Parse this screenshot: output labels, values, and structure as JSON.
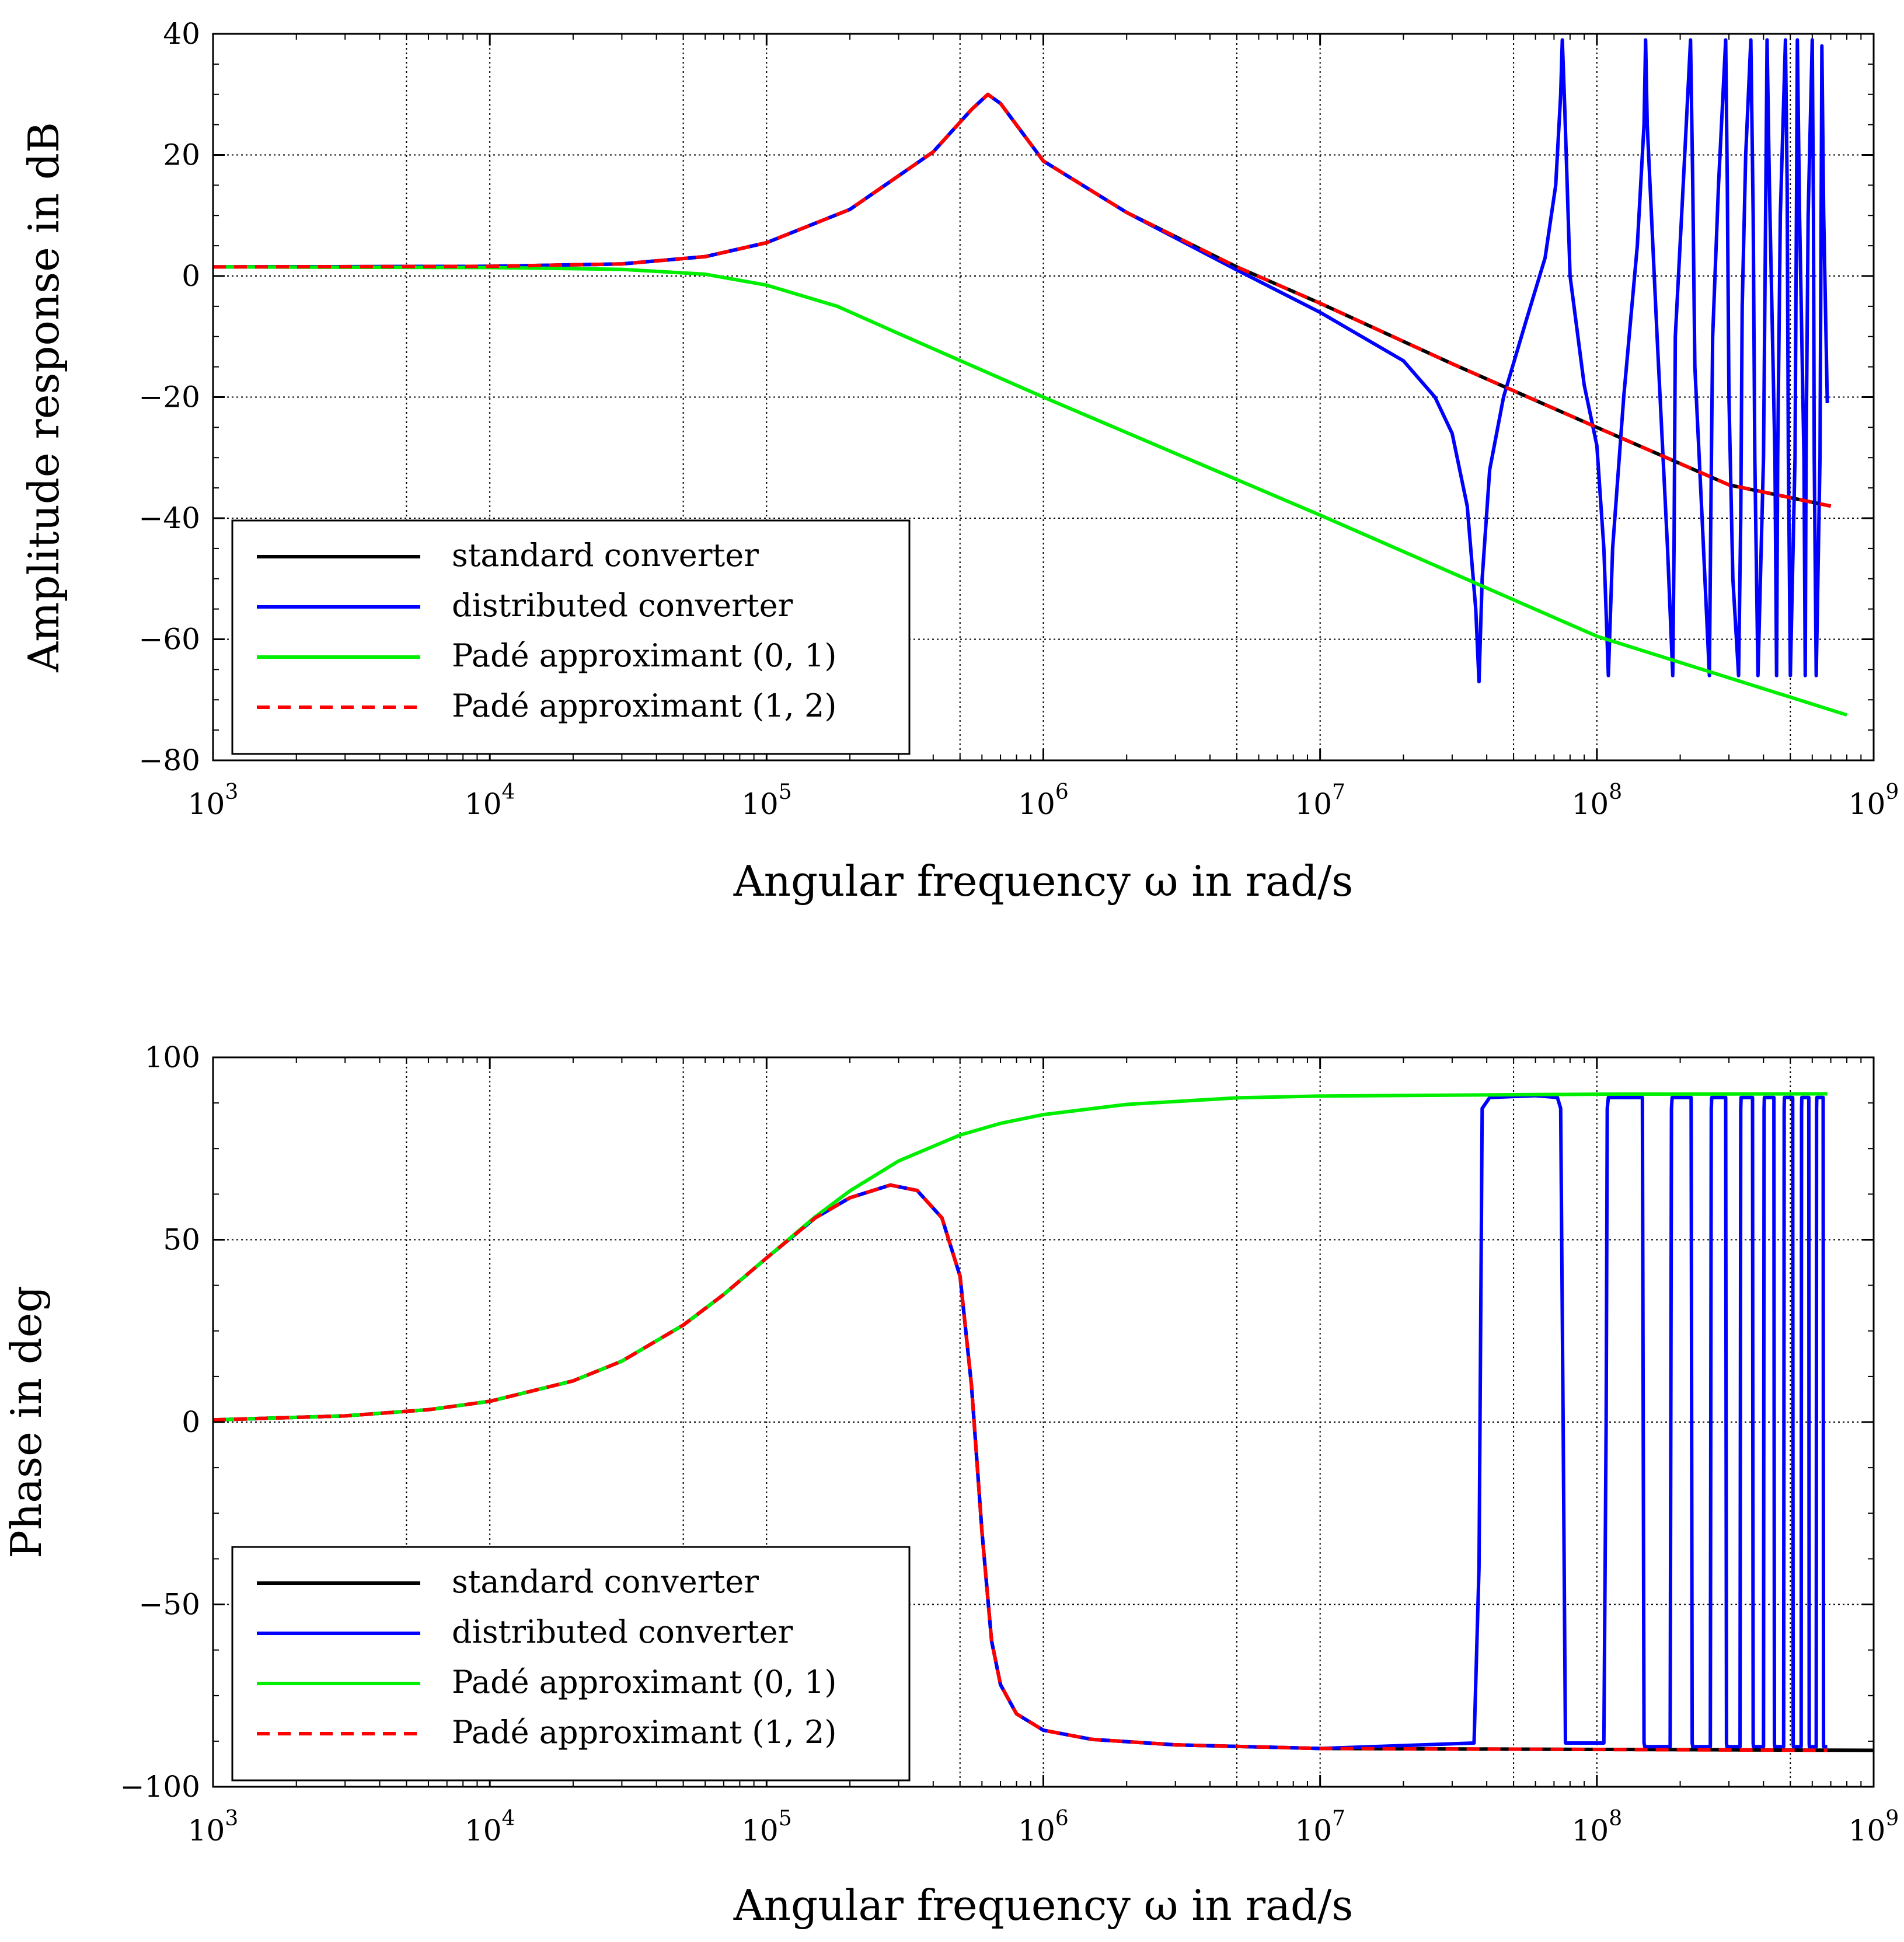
{
  "chart_data": [
    {
      "type": "line",
      "id": "amplitude",
      "xlabel": "Angular frequency ω in rad/s",
      "ylabel": "Amplitude response in dB",
      "xscale": "log",
      "xlim": [
        1000,
        1000000000
      ],
      "ylim": [
        -80,
        40
      ],
      "xticks": [
        {
          "value": 1000,
          "base": "10",
          "exp": "3"
        },
        {
          "value": 10000,
          "base": "10",
          "exp": "4"
        },
        {
          "value": 100000,
          "base": "10",
          "exp": "5"
        },
        {
          "value": 1000000,
          "base": "10",
          "exp": "6"
        },
        {
          "value": 10000000,
          "base": "10",
          "exp": "7"
        },
        {
          "value": 100000000,
          "base": "10",
          "exp": "8"
        },
        {
          "value": 1000000000,
          "base": "10",
          "exp": "9"
        }
      ],
      "yticks": [
        {
          "value": 40,
          "label": "40"
        },
        {
          "value": 20,
          "label": "20"
        },
        {
          "value": 0,
          "label": "0"
        },
        {
          "value": -20,
          "label": "−20"
        },
        {
          "value": -40,
          "label": "−40"
        },
        {
          "value": -60,
          "label": "−60"
        },
        {
          "value": -80,
          "label": "−80"
        }
      ],
      "grid": true,
      "legend_position": "bottom-left",
      "series": [
        {
          "name": "standard converter",
          "color": "#000000",
          "dashed": false,
          "x": [
            1000,
            10000,
            30000,
            60000,
            100000,
            200000,
            400000,
            550000,
            630000,
            700000,
            1000000,
            2000000,
            5000000,
            10000000,
            30000000,
            100000000,
            300000000,
            700000000
          ],
          "y": [
            1.5,
            1.6,
            2.0,
            3.2,
            5.5,
            11.0,
            20.5,
            27.5,
            30.0,
            28.5,
            19.0,
            10.5,
            1.5,
            -4.5,
            -14.5,
            -25.0,
            -34.5,
            -38.0
          ]
        },
        {
          "name": "distributed converter",
          "color": "#0000ff",
          "dashed": false,
          "x": [
            1000,
            10000,
            30000,
            60000,
            100000,
            200000,
            400000,
            550000,
            630000,
            700000,
            1000000,
            2000000,
            5000000,
            10000000,
            20000000,
            26000000,
            30000000,
            34000000,
            36500000,
            37500000,
            38500000,
            41000000,
            46000000,
            55000000,
            65000000,
            71000000,
            74000000,
            75000000,
            76500000,
            80000000,
            90000000,
            100000000,
            106000000,
            110000000,
            114000000,
            125000000,
            140000000,
            148000000,
            150000000,
            152000000,
            165000000,
            180000000,
            188000000,
            190000000,
            192000000,
            205000000,
            218000000,
            222000000,
            226000000,
            240000000,
            255000000,
            258000000,
            262000000,
            275000000,
            292000000,
            296000000,
            300000000,
            310000000,
            325000000,
            331000000,
            335000000,
            345000000,
            360000000,
            367000000,
            372000000,
            382000000,
            400000000,
            407000000,
            412000000,
            420000000,
            440000000,
            446000000,
            450000000,
            460000000,
            480000000,
            487000000,
            492000000,
            500000000,
            520000000,
            526000000,
            530000000,
            540000000,
            560000000,
            566000000,
            570000000,
            580000000,
            600000000,
            606000000,
            610000000,
            620000000,
            640000000,
            646000000,
            650000000,
            660000000,
            680000000
          ],
          "y": [
            1.5,
            1.6,
            2.0,
            3.2,
            5.5,
            11.0,
            20.5,
            27.5,
            30.0,
            28.5,
            19.0,
            10.5,
            1.0,
            -6.0,
            -14.0,
            -20.0,
            -26.0,
            -38.0,
            -55.0,
            -67.0,
            -50.0,
            -32.0,
            -20.0,
            -8.0,
            3.0,
            15.0,
            30.0,
            39.0,
            28.0,
            0.0,
            -18.0,
            -28.0,
            -45.0,
            -66.0,
            -45.0,
            -20.0,
            5.0,
            25.0,
            39.0,
            25.0,
            -10.0,
            -45.0,
            -66.0,
            -45.0,
            -10.0,
            15.0,
            39.0,
            15.0,
            -15.0,
            -40.0,
            -66.0,
            -40.0,
            -10.0,
            15.0,
            39.0,
            15.0,
            -20.0,
            -50.0,
            -66.0,
            -40.0,
            -5.0,
            20.0,
            39.0,
            10.0,
            -30.0,
            -66.0,
            -30.0,
            10.0,
            39.0,
            15.0,
            -30.0,
            -66.0,
            -30.0,
            10.0,
            39.0,
            15.0,
            -30.0,
            -66.0,
            -30.0,
            10.0,
            39.0,
            10.0,
            -30.0,
            -66.0,
            -30.0,
            10.0,
            39.0,
            10.0,
            -30.0,
            -66.0,
            -30.0,
            10.0,
            38.0,
            10.0,
            -21.0
          ]
        },
        {
          "name": "Padé approximant (0, 1)",
          "color": "#00ee00",
          "dashed": false,
          "x": [
            1000,
            10000,
            30000,
            60000,
            100000,
            180000,
            300000,
            1000000,
            10000000,
            100000000,
            800000000
          ],
          "y": [
            1.5,
            1.4,
            1.1,
            0.3,
            -1.5,
            -5.0,
            -9.5,
            -20.0,
            -39.5,
            -59.5,
            -72.5
          ]
        },
        {
          "name": "Padé approximant (1, 2)",
          "color": "#ff0000",
          "dashed": true,
          "x": [
            1000,
            10000,
            30000,
            60000,
            100000,
            200000,
            400000,
            550000,
            630000,
            700000,
            1000000,
            2000000,
            5000000,
            10000000,
            30000000,
            100000000,
            300000000,
            700000000
          ],
          "y": [
            1.5,
            1.6,
            2.0,
            3.2,
            5.5,
            11.0,
            20.5,
            27.5,
            30.0,
            28.5,
            19.0,
            10.5,
            1.5,
            -4.5,
            -14.5,
            -25.0,
            -34.5,
            -38.0
          ]
        }
      ]
    },
    {
      "type": "line",
      "id": "phase",
      "xlabel": "Angular frequency ω in rad/s",
      "ylabel": "Phase in deg",
      "xscale": "log",
      "xlim": [
        1000,
        1000000000
      ],
      "ylim": [
        -100,
        100
      ],
      "xticks": [
        {
          "value": 1000,
          "base": "10",
          "exp": "3"
        },
        {
          "value": 10000,
          "base": "10",
          "exp": "4"
        },
        {
          "value": 100000,
          "base": "10",
          "exp": "5"
        },
        {
          "value": 1000000,
          "base": "10",
          "exp": "6"
        },
        {
          "value": 10000000,
          "base": "10",
          "exp": "7"
        },
        {
          "value": 100000000,
          "base": "10",
          "exp": "8"
        },
        {
          "value": 1000000000,
          "base": "10",
          "exp": "9"
        }
      ],
      "yticks": [
        {
          "value": 100,
          "label": "100"
        },
        {
          "value": 50,
          "label": "50"
        },
        {
          "value": 0,
          "label": "0"
        },
        {
          "value": -50,
          "label": "−50"
        },
        {
          "value": -100,
          "label": "−100"
        }
      ],
      "grid": true,
      "legend_position": "bottom-left",
      "series": [
        {
          "name": "standard converter",
          "color": "#000000",
          "dashed": false,
          "x": [
            1000,
            3000,
            6000,
            10000,
            20000,
            30000,
            50000,
            70000,
            100000,
            150000,
            200000,
            280000,
            350000,
            430000,
            500000,
            550000,
            600000,
            650000,
            700000,
            800000,
            1000000,
            1500000,
            3000000,
            10000000,
            1000000000
          ],
          "y": [
            0.6,
            1.7,
            3.4,
            5.7,
            11.3,
            16.7,
            26.6,
            35.0,
            45.0,
            56.0,
            61.5,
            65.0,
            63.5,
            56.0,
            40.0,
            10.0,
            -30.0,
            -60.0,
            -72.0,
            -80.0,
            -84.5,
            -87.0,
            -88.5,
            -89.5,
            -90.0
          ]
        },
        {
          "name": "distributed converter",
          "color": "#0000ff",
          "dashed": false,
          "x": [
            1000,
            3000,
            6000,
            10000,
            20000,
            30000,
            50000,
            70000,
            100000,
            150000,
            200000,
            280000,
            350000,
            430000,
            500000,
            550000,
            600000,
            650000,
            700000,
            800000,
            1000000,
            1500000,
            3000000,
            10000000,
            36000000,
            37500000,
            38500000,
            41000000,
            60000000,
            72000000,
            74000000,
            75500000,
            77000000,
            106000000,
            108000000,
            109000000,
            110000000,
            146000000,
            147000000,
            148000000,
            149000000,
            184000000,
            185000000,
            186000000,
            187000000,
            219000000,
            220000000,
            221000000,
            222000000,
            257000000,
            258000000,
            259000000,
            260000000,
            292000000,
            293000000,
            294000000,
            295000000,
            329000000,
            330000000,
            331000000,
            332000000,
            365000000,
            366000000,
            367000000,
            368000000,
            400000000,
            401000000,
            402000000,
            403000000,
            436000000,
            437000000,
            438000000,
            439000000,
            473000000,
            474000000,
            475000000,
            476000000,
            510000000,
            511000000,
            512000000,
            513000000,
            547000000,
            548000000,
            549000000,
            550000000,
            583000000,
            584000000,
            585000000,
            586000000,
            620000000,
            621000000,
            622000000,
            623000000,
            657000000,
            658000000,
            659000000,
            660000000,
            680000000
          ],
          "y": [
            0.6,
            1.7,
            3.4,
            5.7,
            11.3,
            16.7,
            26.6,
            35.0,
            45.0,
            56.0,
            61.5,
            65.0,
            63.5,
            56.0,
            40.0,
            10.0,
            -30.0,
            -60.0,
            -72.0,
            -80.0,
            -84.5,
            -87.0,
            -88.5,
            -89.5,
            -88.0,
            -40.0,
            86.0,
            89.0,
            89.5,
            89.0,
            86.0,
            0.0,
            -88.0,
            -88.0,
            0.0,
            86.0,
            89.0,
            89.0,
            0.0,
            -88.0,
            -89.0,
            -89.0,
            0.0,
            86.0,
            89.0,
            89.0,
            0.0,
            -88.0,
            -89.0,
            -89.0,
            0.0,
            86.0,
            89.0,
            89.0,
            0.0,
            -88.0,
            -89.0,
            -89.0,
            0.0,
            86.0,
            89.0,
            89.0,
            0.0,
            -88.0,
            -89.0,
            -89.0,
            0.0,
            86.0,
            89.0,
            89.0,
            0.0,
            -88.0,
            -89.0,
            -89.0,
            0.0,
            86.0,
            89.0,
            89.0,
            0.0,
            -88.0,
            -89.0,
            -89.0,
            0.0,
            86.0,
            89.0,
            89.0,
            0.0,
            -88.0,
            -89.0,
            -89.0,
            0.0,
            86.0,
            89.0,
            89.0,
            0.0,
            -88.0,
            -89.0,
            -89.0
          ]
        },
        {
          "name": "Padé approximant (0, 1)",
          "color": "#00ee00",
          "dashed": false,
          "x": [
            1000,
            3000,
            6000,
            10000,
            20000,
            30000,
            50000,
            70000,
            100000,
            150000,
            200000,
            300000,
            500000,
            700000,
            1000000,
            2000000,
            5000000,
            10000000,
            100000000,
            680000000
          ],
          "y": [
            0.6,
            1.7,
            3.4,
            5.7,
            11.3,
            16.7,
            26.6,
            35.0,
            45.0,
            56.3,
            63.4,
            71.6,
            78.7,
            81.9,
            84.3,
            87.1,
            88.9,
            89.4,
            89.9,
            90.0
          ]
        },
        {
          "name": "Padé approximant (1, 2)",
          "color": "#ff0000",
          "dashed": true,
          "x": [
            1000,
            3000,
            6000,
            10000,
            20000,
            30000,
            50000,
            70000,
            100000,
            150000,
            200000,
            280000,
            350000,
            430000,
            500000,
            550000,
            600000,
            650000,
            700000,
            800000,
            1000000,
            1500000,
            3000000,
            10000000,
            680000000
          ],
          "y": [
            0.6,
            1.7,
            3.4,
            5.7,
            11.3,
            16.7,
            26.6,
            35.0,
            45.0,
            56.0,
            61.5,
            65.0,
            63.5,
            56.0,
            40.0,
            10.0,
            -30.0,
            -60.0,
            -72.0,
            -80.0,
            -84.5,
            -87.0,
            -88.5,
            -89.5,
            -90.0
          ]
        }
      ]
    }
  ]
}
